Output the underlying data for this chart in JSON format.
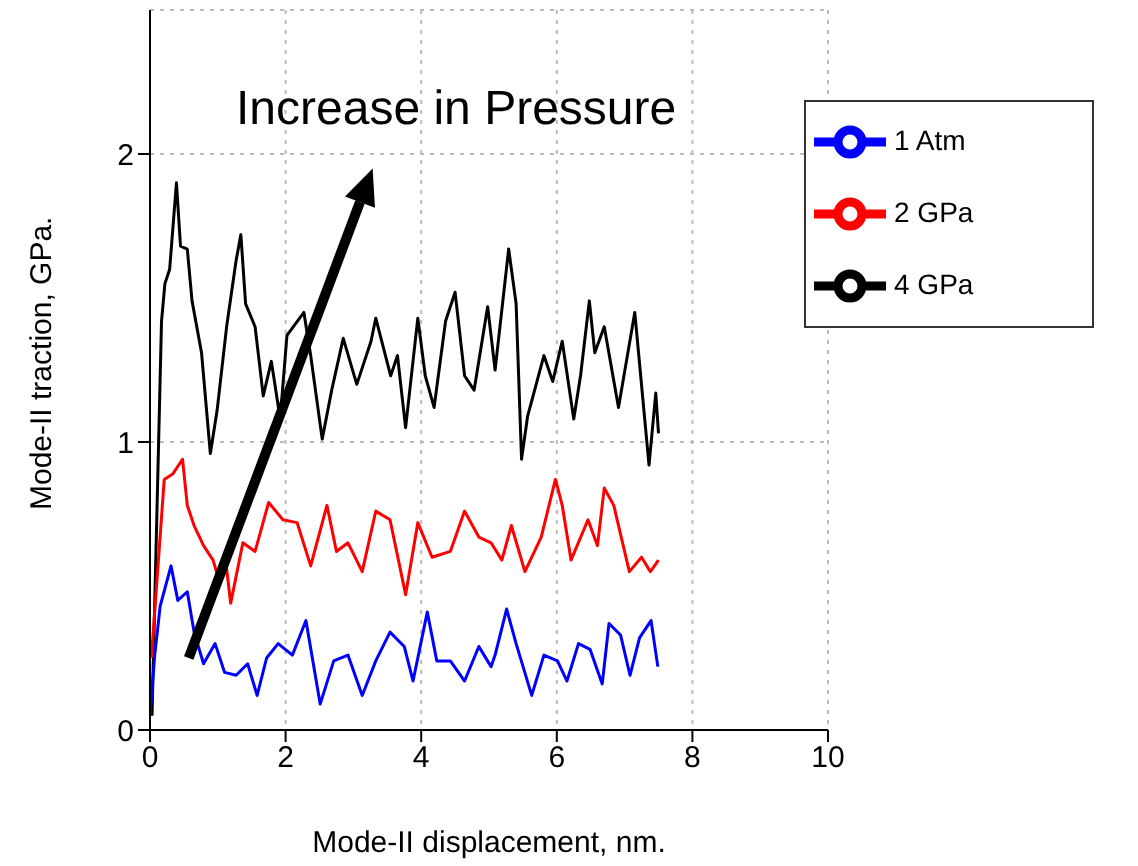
{
  "chart_data": {
    "type": "line",
    "xlabel": "Mode-II displacement, nm.",
    "ylabel": "Mode-II traction, GPa.",
    "annotations": [
      "Increase in Pressure"
    ],
    "xlim": [
      0,
      10
    ],
    "xticks": [
      0,
      2,
      4,
      6,
      8,
      10
    ],
    "ylim": [
      0,
      2.5
    ],
    "yticks": [
      0,
      1,
      2
    ],
    "grid": true,
    "legend": "top right",
    "marker": "none",
    "line_style": "solid",
    "series": [
      {
        "name": "4 GPa",
        "color": "#000000",
        "x": [
          0.03,
          0.17,
          0.22,
          0.29,
          0.39,
          0.45,
          0.55,
          0.62,
          0.76,
          0.89,
          0.99,
          1.13,
          1.27,
          1.34,
          1.41,
          1.55,
          1.67,
          1.79,
          1.92,
          2.02,
          2.27,
          2.37,
          2.54,
          2.68,
          2.85,
          3.05,
          3.26,
          3.33,
          3.55,
          3.65,
          3.77,
          3.95,
          4.06,
          4.19,
          4.36,
          4.5,
          4.64,
          4.78,
          4.98,
          5.09,
          5.29,
          5.4,
          5.48,
          5.57,
          5.81,
          5.94,
          6.08,
          6.25,
          6.35,
          6.48,
          6.56,
          6.7,
          6.91,
          7.15,
          7.36,
          7.46,
          7.5
        ],
        "values": [
          0.05,
          1.42,
          1.55,
          1.6,
          1.9,
          1.68,
          1.67,
          1.49,
          1.31,
          0.96,
          1.11,
          1.4,
          1.63,
          1.72,
          1.48,
          1.4,
          1.16,
          1.28,
          1.08,
          1.37,
          1.45,
          1.3,
          1.01,
          1.18,
          1.36,
          1.2,
          1.35,
          1.43,
          1.23,
          1.3,
          1.05,
          1.43,
          1.23,
          1.12,
          1.42,
          1.52,
          1.23,
          1.18,
          1.47,
          1.25,
          1.67,
          1.48,
          0.94,
          1.09,
          1.3,
          1.21,
          1.35,
          1.08,
          1.23,
          1.49,
          1.31,
          1.4,
          1.12,
          1.45,
          0.92,
          1.17,
          1.03
        ]
      },
      {
        "name": "2 GPa",
        "color": "#ff0000",
        "x": [
          0.02,
          0.21,
          0.34,
          0.48,
          0.55,
          0.65,
          0.79,
          0.93,
          1.03,
          1.13,
          1.19,
          1.37,
          1.55,
          1.75,
          1.96,
          2.17,
          2.37,
          2.61,
          2.75,
          2.92,
          3.13,
          3.33,
          3.54,
          3.77,
          3.95,
          4.16,
          4.43,
          4.64,
          4.85,
          5.03,
          5.19,
          5.33,
          5.53,
          5.77,
          5.98,
          6.08,
          6.21,
          6.46,
          6.6,
          6.7,
          6.84,
          7.07,
          7.25,
          7.38,
          7.5
        ],
        "values": [
          0.25,
          0.87,
          0.89,
          0.94,
          0.78,
          0.71,
          0.64,
          0.59,
          0.51,
          0.56,
          0.44,
          0.65,
          0.62,
          0.79,
          0.73,
          0.72,
          0.57,
          0.78,
          0.62,
          0.65,
          0.55,
          0.76,
          0.73,
          0.47,
          0.72,
          0.6,
          0.62,
          0.76,
          0.67,
          0.65,
          0.59,
          0.71,
          0.55,
          0.67,
          0.87,
          0.78,
          0.59,
          0.73,
          0.64,
          0.84,
          0.78,
          0.55,
          0.6,
          0.55,
          0.59
        ]
      },
      {
        "name": "1 Atm",
        "color": "#0000ff",
        "x": [
          0.0,
          0.07,
          0.15,
          0.31,
          0.41,
          0.55,
          0.65,
          0.79,
          0.96,
          1.1,
          1.27,
          1.44,
          1.58,
          1.72,
          1.89,
          2.1,
          2.3,
          2.51,
          2.71,
          2.92,
          3.13,
          3.33,
          3.54,
          3.75,
          3.88,
          4.09,
          4.23,
          4.43,
          4.64,
          4.85,
          5.03,
          5.09,
          5.26,
          5.4,
          5.63,
          5.81,
          6.01,
          6.15,
          6.32,
          6.49,
          6.67,
          6.77,
          6.94,
          7.08,
          7.22,
          7.39,
          7.49
        ],
        "values": [
          0.05,
          0.26,
          0.43,
          0.57,
          0.45,
          0.48,
          0.34,
          0.23,
          0.3,
          0.2,
          0.19,
          0.23,
          0.12,
          0.25,
          0.3,
          0.26,
          0.38,
          0.09,
          0.24,
          0.26,
          0.12,
          0.24,
          0.34,
          0.29,
          0.17,
          0.41,
          0.24,
          0.24,
          0.17,
          0.29,
          0.22,
          0.26,
          0.42,
          0.3,
          0.12,
          0.26,
          0.24,
          0.17,
          0.3,
          0.28,
          0.16,
          0.37,
          0.33,
          0.19,
          0.32,
          0.38,
          0.22
        ]
      }
    ]
  }
}
